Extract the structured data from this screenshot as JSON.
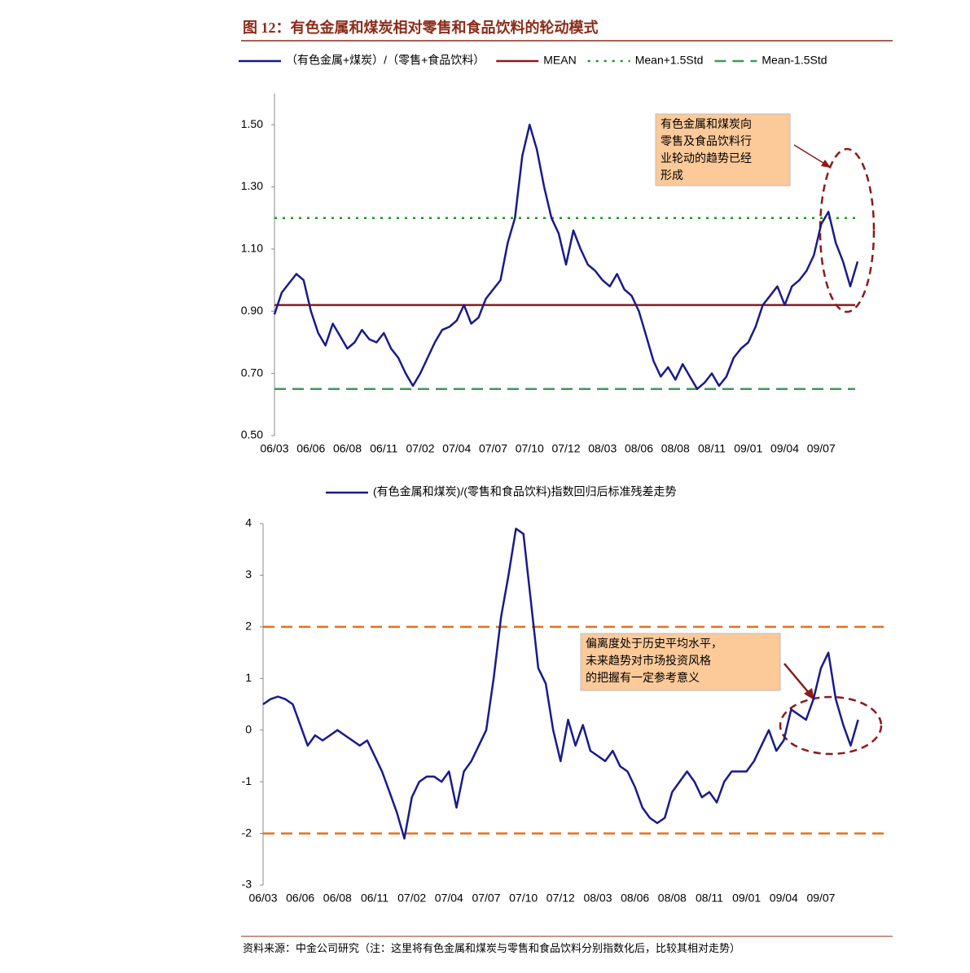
{
  "header": {
    "title": "图 12：有色金属和煤炭相对零售和食品饮料的轮动模式"
  },
  "footer": {
    "source": "资料来源：中金公司研究（注：这里将有色金属和煤炭与零售和食品饮料分别指数化后，比较其相对走势）"
  },
  "chart_data": [
    {
      "type": "line",
      "categories": [
        "06/03",
        null,
        null,
        null,
        null,
        "06/06",
        null,
        null,
        null,
        null,
        "06/08",
        null,
        null,
        null,
        null,
        "06/11",
        null,
        null,
        null,
        null,
        "07/02",
        null,
        null,
        null,
        null,
        "07/04",
        null,
        null,
        null,
        null,
        "07/07",
        null,
        null,
        null,
        null,
        "07/10",
        null,
        null,
        null,
        null,
        "07/12",
        null,
        null,
        null,
        null,
        "08/03",
        null,
        null,
        null,
        null,
        "08/06",
        null,
        null,
        null,
        null,
        "08/08",
        null,
        null,
        null,
        null,
        "08/11",
        null,
        null,
        null,
        null,
        "09/01",
        null,
        null,
        null,
        null,
        "09/04",
        null,
        null,
        null,
        null,
        "09/07",
        null,
        null,
        null,
        null,
        null
      ],
      "series": [
        {
          "name": "（有色金属+煤炭）/（零售+食品饮料）",
          "color": "#1a1a8c",
          "values": [
            0.89,
            0.96,
            0.99,
            1.02,
            1.0,
            0.9,
            0.83,
            0.79,
            0.86,
            0.82,
            0.78,
            0.8,
            0.84,
            0.81,
            0.8,
            0.83,
            0.78,
            0.75,
            0.7,
            0.66,
            0.7,
            0.75,
            0.8,
            0.84,
            0.85,
            0.87,
            0.92,
            0.86,
            0.88,
            0.94,
            0.97,
            1.0,
            1.12,
            1.2,
            1.4,
            1.5,
            1.42,
            1.3,
            1.2,
            1.15,
            1.05,
            1.16,
            1.1,
            1.05,
            1.03,
            1.0,
            0.98,
            1.02,
            0.97,
            0.95,
            0.9,
            0.82,
            0.74,
            0.69,
            0.72,
            0.68,
            0.73,
            0.69,
            0.65,
            0.67,
            0.7,
            0.66,
            0.69,
            0.75,
            0.78,
            0.8,
            0.85,
            0.92,
            0.95,
            0.98,
            0.92,
            0.98,
            1.0,
            1.03,
            1.08,
            1.18,
            1.22,
            1.12,
            1.06,
            0.98,
            1.06
          ]
        }
      ],
      "reference_lines": [
        {
          "name": "MEAN",
          "value": 0.92,
          "color": "#8b1a1a",
          "dash": "solid"
        },
        {
          "name": "Mean+1.5Std",
          "value": 1.2,
          "color": "#1a9a1a",
          "dash": "dotted"
        },
        {
          "name": "Mean-1.5Std",
          "value": 0.65,
          "color": "#3a9a5a",
          "dash": "dashed"
        }
      ],
      "ylim": [
        0.5,
        1.6
      ],
      "yticks": [
        {
          "value": 0.5,
          "label": "0.50"
        },
        {
          "value": 0.7,
          "label": "0.70"
        },
        {
          "value": 0.9,
          "label": "0.90"
        },
        {
          "value": 1.1,
          "label": "1.10"
        },
        {
          "value": 1.3,
          "label": "1.30"
        },
        {
          "value": 1.5,
          "label": "1.50"
        }
      ],
      "annotation": [
        "有色金属和煤炭向",
        "零售及食品饮料行",
        "业轮动的趋势已经",
        "形成"
      ]
    },
    {
      "type": "line",
      "categories": [
        "06/03",
        null,
        null,
        null,
        null,
        "06/06",
        null,
        null,
        null,
        null,
        "06/08",
        null,
        null,
        null,
        null,
        "06/11",
        null,
        null,
        null,
        null,
        "07/02",
        null,
        null,
        null,
        null,
        "07/04",
        null,
        null,
        null,
        null,
        "07/07",
        null,
        null,
        null,
        null,
        "07/10",
        null,
        null,
        null,
        null,
        "07/12",
        null,
        null,
        null,
        null,
        "08/03",
        null,
        null,
        null,
        null,
        "08/06",
        null,
        null,
        null,
        null,
        "08/08",
        null,
        null,
        null,
        null,
        "08/11",
        null,
        null,
        null,
        null,
        "09/01",
        null,
        null,
        null,
        null,
        "09/04",
        null,
        null,
        null,
        null,
        "09/07",
        null,
        null,
        null,
        null,
        null
      ],
      "series": [
        {
          "name": "(有色金属和煤炭)/(零售和食品饮料)指数回归后标准残差走势",
          "color": "#1a1a8c",
          "values": [
            0.5,
            0.6,
            0.65,
            0.6,
            0.5,
            0.1,
            -0.3,
            -0.1,
            -0.2,
            -0.1,
            0.0,
            -0.1,
            -0.2,
            -0.3,
            -0.2,
            -0.5,
            -0.8,
            -1.2,
            -1.6,
            -2.1,
            -1.3,
            -1.0,
            -0.9,
            -0.9,
            -1.0,
            -0.8,
            -1.5,
            -0.8,
            -0.6,
            -0.3,
            0.0,
            1.0,
            2.2,
            3.0,
            3.9,
            3.8,
            2.5,
            1.2,
            0.9,
            0.0,
            -0.6,
            0.2,
            -0.3,
            0.1,
            -0.4,
            -0.5,
            -0.6,
            -0.4,
            -0.7,
            -0.8,
            -1.1,
            -1.5,
            -1.7,
            -1.8,
            -1.7,
            -1.2,
            -1.0,
            -0.8,
            -1.0,
            -1.3,
            -1.2,
            -1.4,
            -1.0,
            -0.8,
            -0.8,
            -0.8,
            -0.6,
            -0.3,
            0.0,
            -0.4,
            -0.2,
            0.4,
            0.3,
            0.2,
            0.6,
            1.2,
            1.5,
            0.6,
            0.1,
            -0.3,
            0.2
          ]
        }
      ],
      "reference_lines": [
        {
          "value": 2,
          "color": "#e8701a",
          "dash": "dashed"
        },
        {
          "value": -2,
          "color": "#e8701a",
          "dash": "dashed"
        }
      ],
      "ylim": [
        -3,
        4
      ],
      "yticks": [
        -3,
        -2,
        -1,
        0,
        1,
        2,
        3,
        4
      ],
      "annotation": [
        "偏离度处于历史平均水平，",
        "未来趋势对市场投资风格",
        "的把握有一定参考意义"
      ]
    }
  ]
}
